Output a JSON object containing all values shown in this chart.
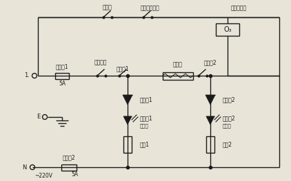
{
  "bg_color": "#e8e4d8",
  "line_color": "#1a1a1a",
  "text_color": "#1a1a1a",
  "labels": {
    "door_switch": "门开关",
    "timer_switch": "保鲜定时开关",
    "ozone_gen": "臭氧发生器",
    "ozone_box": "O₃",
    "thermal_switch": "翻热开关",
    "thermostat1": "温控器1",
    "thermostat2": "温控器2",
    "fuse1": "熔断器1",
    "fuse1_rating": "5A",
    "heater": "发热器",
    "diode1": "二极管1",
    "diode2": "二极管2",
    "lamp1": "指示灯1",
    "lamp1_color": "（黄）",
    "lamp2": "指示灯2",
    "lamp2_color": "（红）",
    "resistor1": "电阻1",
    "resistor2": "电阻2",
    "fuse2": "熔断器2",
    "fuse2_rating": "5A",
    "L_label": "1.",
    "E_label": "E",
    "N_label": "N",
    "voltage": "~220V"
  }
}
